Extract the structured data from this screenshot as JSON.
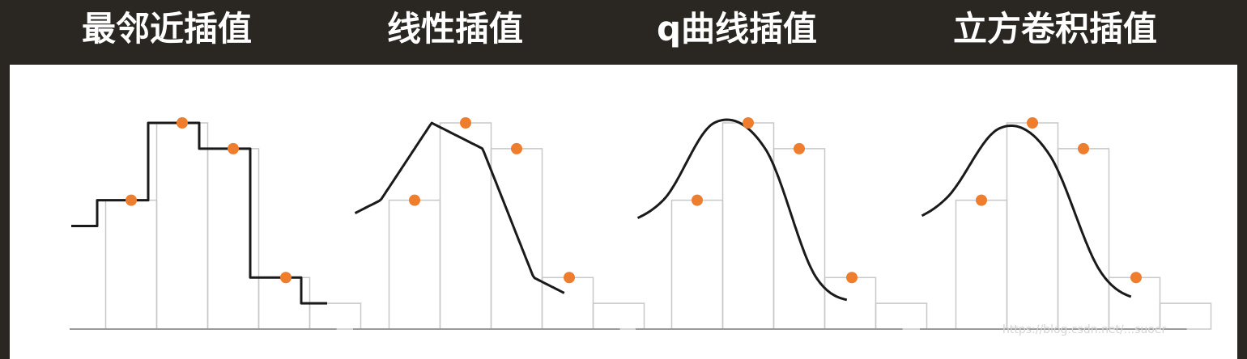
{
  "colors": {
    "header_bg": "#2a2621",
    "panel_bg": "#ffffff",
    "title_text": "#ffffff",
    "curve": "#1a1a1a",
    "box_stroke": "#c8c8c8",
    "axis": "#9a9a9a",
    "sample_point": "#ee7d2e"
  },
  "panels": [
    {
      "title": "最邻近插值",
      "method": "nearest"
    },
    {
      "title": "线性插值",
      "method": "linear"
    },
    {
      "title": "q曲线插值",
      "method": "quadratic"
    },
    {
      "title": "立方卷积插值",
      "method": "cubic"
    }
  ],
  "chart_data": {
    "type": "line",
    "samples": [
      5,
      8,
      7,
      2
    ],
    "boundary": {
      "left": 4,
      "right": 1
    },
    "ylim": [
      0,
      8
    ]
  },
  "watermark": "https://blog.csdn.net/...suoer"
}
